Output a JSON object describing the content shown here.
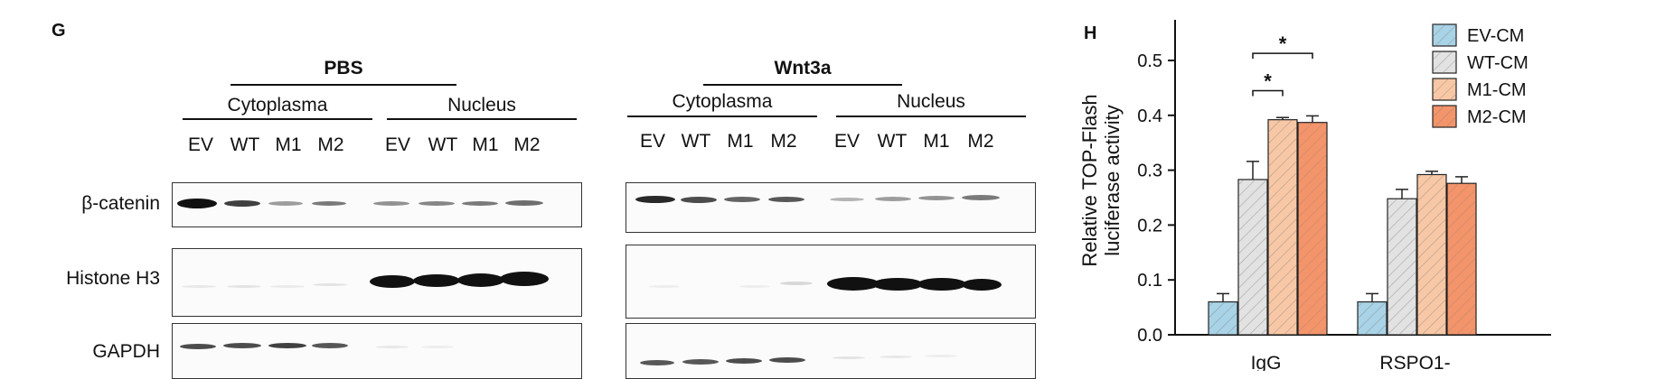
{
  "panel_g": {
    "letter": "G",
    "left_condition": "PBS",
    "right_condition": "Wnt3a",
    "fractions": [
      "Cytoplasma",
      "Nucleus"
    ],
    "lanes": [
      "EV",
      "WT",
      "M1",
      "M2"
    ],
    "rows": [
      "β-catenin",
      "Histone H3",
      "GAPDH"
    ]
  },
  "panel_h": {
    "letter": "H",
    "colors": {
      "EV-CM": "#a9d3e6",
      "WT-CM": "#e2e2e2",
      "M1-CM": "#f8c8a6",
      "M2-CM": "#f3946a"
    },
    "chart_data": {
      "type": "bar",
      "ylabel_line1": "Relative TOP-Flash",
      "ylabel_line2": "luciferase activity",
      "ylim": [
        0,
        0.55
      ],
      "yticks": [
        "0.0",
        "0.1",
        "0.2",
        "0.3",
        "0.4",
        "0.5"
      ],
      "categories": [
        "IgG",
        "RSPO1-"
      ],
      "series": [
        {
          "name": "EV-CM",
          "values": [
            0.06,
            0.06
          ],
          "errors": [
            0.015,
            0.015
          ]
        },
        {
          "name": "WT-CM",
          "values": [
            0.283,
            0.248
          ],
          "errors": [
            0.033,
            0.017
          ]
        },
        {
          "name": "M1-CM",
          "values": [
            0.392,
            0.292
          ],
          "errors": [
            0.004,
            0.006
          ]
        },
        {
          "name": "M2-CM",
          "values": [
            0.387,
            0.276
          ],
          "errors": [
            0.012,
            0.012
          ]
        }
      ],
      "significance": [
        "*",
        "*"
      ],
      "legend_position": "top-right",
      "grid": false
    }
  }
}
